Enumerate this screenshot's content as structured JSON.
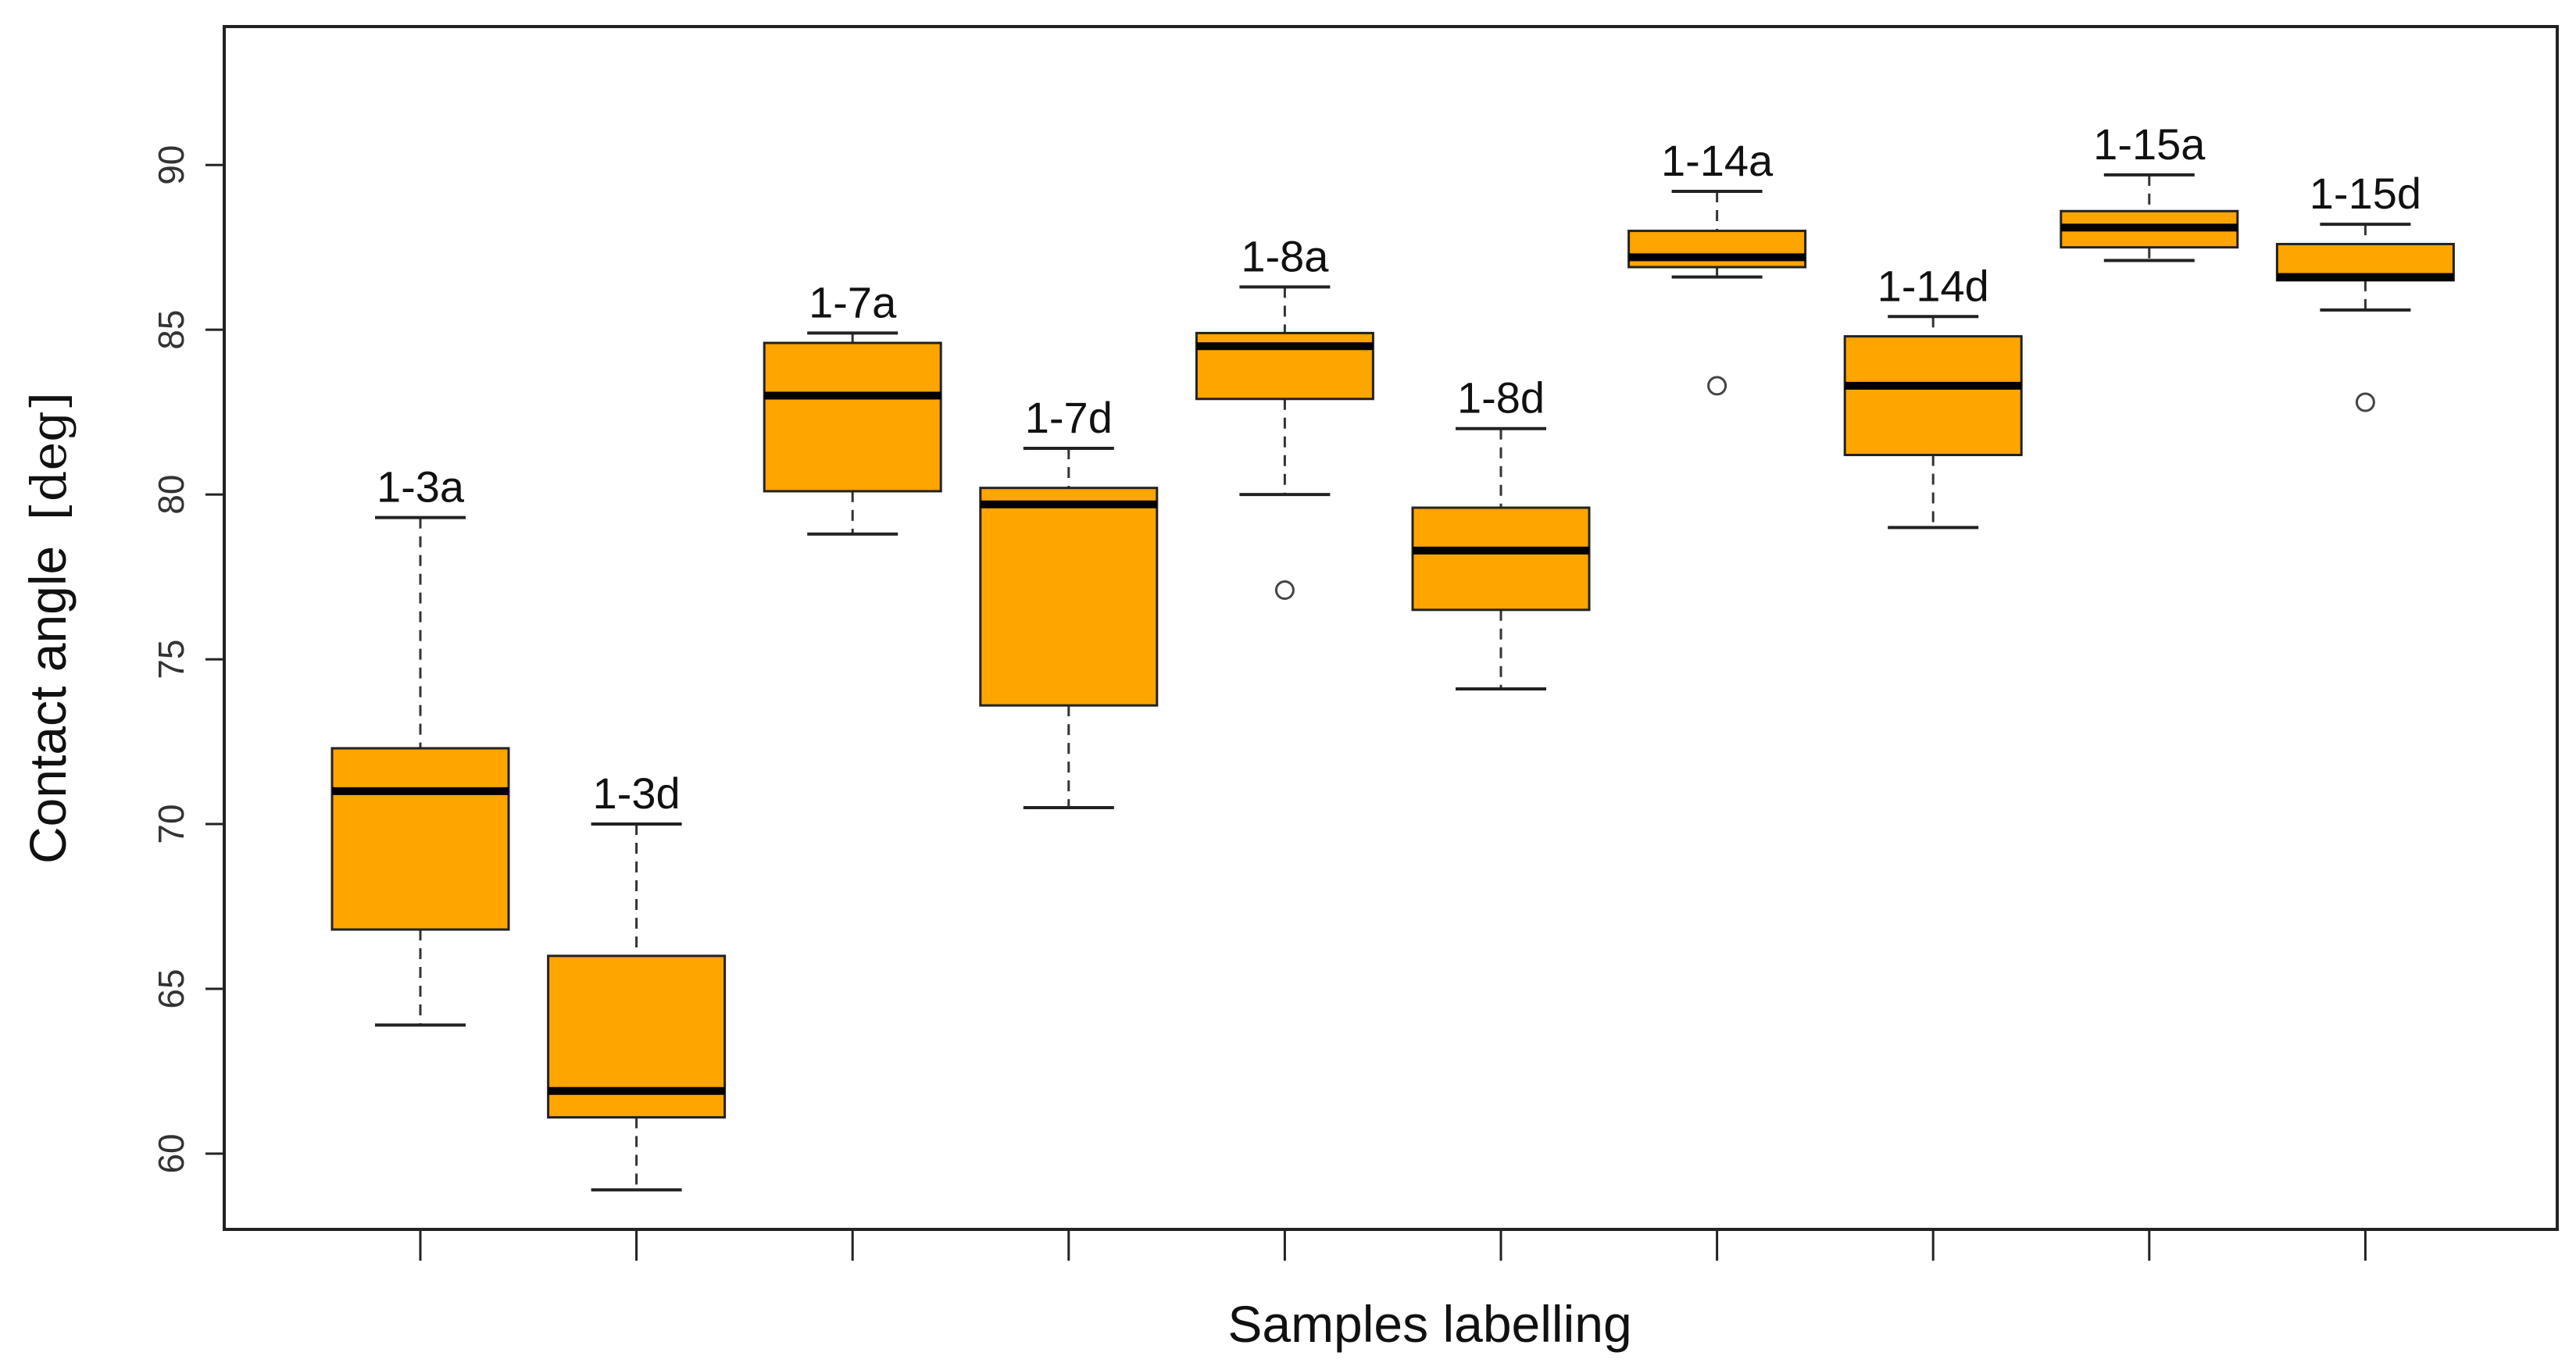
{
  "chart_data": {
    "type": "boxplot",
    "title": "",
    "xlabel": "Samples labelling",
    "ylabel": "Contact angle",
    "ylabel_unit": "[deg]",
    "ylim": [
      57.7,
      94.2
    ],
    "yticks": [
      60,
      65,
      70,
      75,
      80,
      85,
      90
    ],
    "box_color": "#FFA500",
    "outline_color": "#000000",
    "series": [
      {
        "label": "1-3a",
        "whisker_low": 63.9,
        "q1": 66.8,
        "median": 71.0,
        "q3": 72.3,
        "whisker_high": 79.3,
        "outliers": []
      },
      {
        "label": "1-3d",
        "whisker_low": 58.9,
        "q1": 61.1,
        "median": 61.9,
        "q3": 66.0,
        "whisker_high": 70.0,
        "outliers": []
      },
      {
        "label": "1-7a",
        "whisker_low": 78.8,
        "q1": 80.1,
        "median": 83.0,
        "q3": 84.6,
        "whisker_high": 84.9,
        "outliers": []
      },
      {
        "label": "1-7d",
        "whisker_low": 70.5,
        "q1": 73.6,
        "median": 79.7,
        "q3": 80.2,
        "whisker_high": 81.4,
        "outliers": []
      },
      {
        "label": "1-8a",
        "whisker_low": 80.0,
        "q1": 82.9,
        "median": 84.5,
        "q3": 84.9,
        "whisker_high": 86.3,
        "outliers": [
          77.1
        ]
      },
      {
        "label": "1-8d",
        "whisker_low": 74.1,
        "q1": 76.5,
        "median": 78.3,
        "q3": 79.6,
        "whisker_high": 82.0,
        "outliers": []
      },
      {
        "label": "1-14a",
        "whisker_low": 86.6,
        "q1": 86.9,
        "median": 87.2,
        "q3": 88.0,
        "whisker_high": 89.2,
        "outliers": [
          83.3
        ]
      },
      {
        "label": "1-14d",
        "whisker_low": 79.0,
        "q1": 81.2,
        "median": 83.3,
        "q3": 84.8,
        "whisker_high": 85.4,
        "outliers": []
      },
      {
        "label": "1-15a",
        "whisker_low": 87.1,
        "q1": 87.5,
        "median": 88.1,
        "q3": 88.6,
        "whisker_high": 89.7,
        "outliers": []
      },
      {
        "label": "1-15d",
        "whisker_low": 85.6,
        "q1": 86.5,
        "median": 86.6,
        "q3": 87.6,
        "whisker_high": 88.2,
        "outliers": [
          82.8
        ]
      }
    ]
  }
}
